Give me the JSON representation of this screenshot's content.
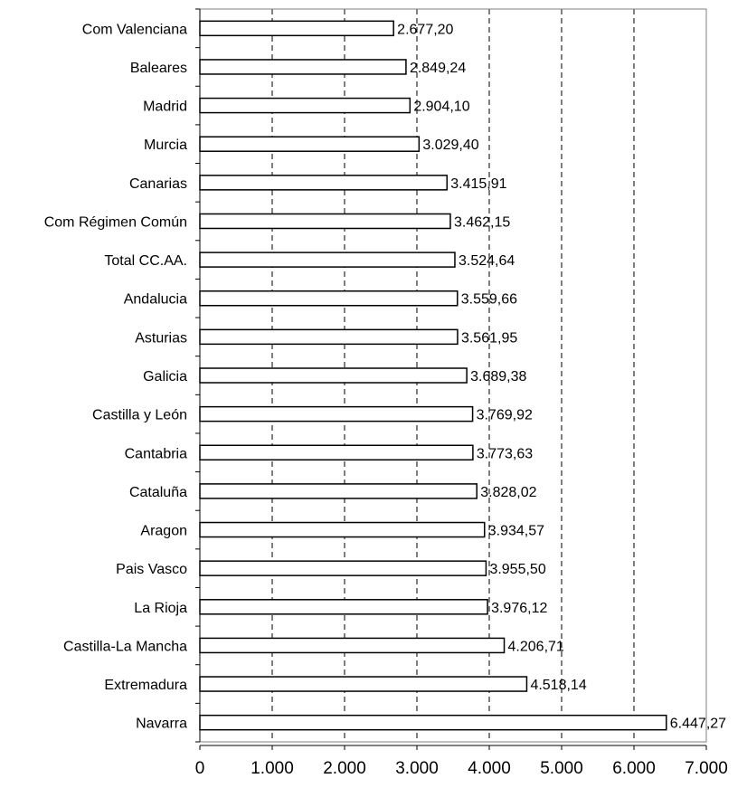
{
  "chart_data": {
    "type": "bar",
    "orientation": "horizontal",
    "title": "",
    "xlabel": "",
    "ylabel": "",
    "xlim": [
      0,
      7000
    ],
    "x_ticks": [
      0,
      1000,
      2000,
      3000,
      4000,
      5000,
      6000,
      7000
    ],
    "x_tick_labels": [
      "0",
      "1.000",
      "2.000",
      "3.000",
      "4.000",
      "5.000",
      "6.000",
      "7.000"
    ],
    "grid": "vertical dashed",
    "legend": "none",
    "bar_fill": "#ffffff",
    "bar_stroke": "#000000",
    "categories": [
      "Com Valenciana",
      "Baleares",
      "Madrid",
      "Murcia",
      "Canarias",
      "Com Régimen Común",
      "Total CC.AA.",
      "Andalucia",
      "Asturias",
      "Galicia",
      "Castilla y León",
      "Cantabria",
      "Cataluña",
      "Aragon",
      "Pais Vasco",
      "La Rioja",
      "Castilla-La Mancha",
      "Extremadura",
      "Navarra"
    ],
    "values": [
      2677.2,
      2849.24,
      2904.1,
      3029.4,
      3415.91,
      3462.15,
      3524.64,
      3559.66,
      3561.95,
      3689.38,
      3769.92,
      3773.63,
      3828.02,
      3934.57,
      3955.5,
      3976.12,
      4206.71,
      4518.14,
      6447.27
    ],
    "value_labels": [
      "2.677,20",
      "2.849,24",
      "2.904,10",
      "3.029,40",
      "3.415,91",
      "3.462,15",
      "3.524,64",
      "3.559,66",
      "3.561,95",
      "3.689,38",
      "3.769,92",
      "3.773,63",
      "3.828,02",
      "3.934,57",
      "3.955,50",
      "3.976,12",
      "4.206,71",
      "4.518,14",
      "6.447,27"
    ]
  }
}
